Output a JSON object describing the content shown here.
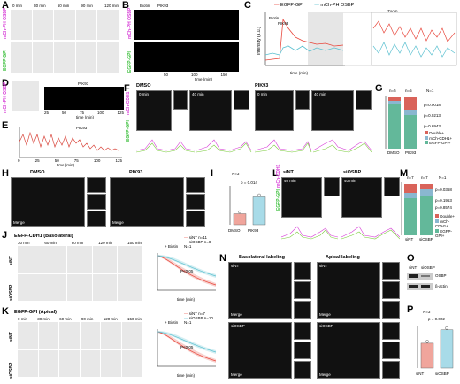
{
  "panels": {
    "A": {
      "label": "A",
      "times": [
        "0 min",
        "30 min",
        "60 min",
        "90 min",
        "120 min"
      ],
      "rows": [
        "mCh-PH OSBP",
        "EGFP-GPI"
      ]
    },
    "B": {
      "label": "B",
      "top": [
        "Biotin",
        "PIK93"
      ],
      "xlabel": "time (min)",
      "ticks": [
        "50",
        "100",
        "150"
      ],
      "rows": [
        "mCh-PH OSBP",
        "EGFP-GPI"
      ]
    },
    "C": {
      "label": "C",
      "legend": [
        "EGFP-GPI",
        "mCh-PH OSBP"
      ],
      "marks": [
        "Biotin",
        "PIK93"
      ],
      "ylabel": "Intensity (a.u.)",
      "xlabel": "time (min)",
      "zoom": "Zoom",
      "colors": {
        "gpi": "#e8473c",
        "ph": "#5bc0d0"
      }
    },
    "D": {
      "label": "D",
      "mark": "PIK93",
      "xlabel": "time (min)",
      "ticks": [
        "25",
        "50",
        "75",
        "100",
        "125"
      ],
      "row": "mCh-PH OSBP"
    },
    "E": {
      "label": "E",
      "mark": "PIK93",
      "ylabel": "Intensity (a.u.)",
      "xlabel": "time (min)",
      "ticks": [
        "0",
        "25",
        "50",
        "75",
        "100",
        "125"
      ]
    },
    "F": {
      "label": "F",
      "conds": [
        "DMSO",
        "PIK93"
      ],
      "times": [
        "0 min",
        "40 min"
      ],
      "zoom": "Zoom",
      "rows": [
        "EGFP-GPI",
        "mCh-CDH1"
      ]
    },
    "G": {
      "label": "G",
      "n": [
        "n=5",
        "n=5"
      ],
      "N": "N=1",
      "pvals": [
        "p=0.0018",
        "p=0.0213",
        "p=0.6943"
      ],
      "legend": [
        "Double+",
        "mCh-CDH1+",
        "EGFP-GPI+"
      ],
      "xcats": [
        "DMSO",
        "PIK93"
      ],
      "ylabel": "%",
      "yticks": [
        "0",
        "25",
        "50",
        "75",
        "100"
      ],
      "colors": {
        "double": "#d9635a",
        "cdh1": "#8ab7d0",
        "gpi": "#63b89a"
      }
    },
    "H": {
      "label": "H",
      "conds": [
        "DMSO",
        "PIK93"
      ],
      "merge": "Merge",
      "chans": [
        "Actin",
        "Sec16"
      ]
    },
    "I": {
      "label": "I",
      "N": "N=3",
      "p": "p = 0.014",
      "ylabel": "Cysts with luminal defect (%)",
      "xcats": [
        "DMSO",
        "PIK93"
      ],
      "yticks": [
        "0",
        "20",
        "40",
        "60"
      ],
      "chart_data": {
        "type": "bar",
        "categories": [
          "DMSO",
          "PIK93"
        ],
        "values": [
          17,
          43
        ],
        "ylim": [
          0,
          60
        ]
      }
    },
    "J": {
      "label": "J",
      "title": "EGFP-CDH1 (Basolateral)",
      "times": [
        "30 min",
        "60 min",
        "90 min",
        "120 min",
        "150 min"
      ],
      "rows": [
        "siNT",
        "siOSBP"
      ],
      "legend": [
        "siNT n=11",
        "siOSBP n=8"
      ],
      "N": "N=1",
      "treat": "+ Biotin",
      "p": "P<0.05",
      "ylabel": "Normalized intensity in Golgi",
      "xlabel": "time (min)"
    },
    "K": {
      "label": "K",
      "title": "EGFP-GPI (Apical)",
      "times": [
        "0 min",
        "30 min",
        "60 min",
        "90 min",
        "120 min",
        "150 min"
      ],
      "rows": [
        "siNT",
        "siOSBP"
      ],
      "legend": [
        "siNT n=7",
        "siOSBP n=10"
      ],
      "N": "N=1",
      "treat": "+ Biotin",
      "p": "P<0.05",
      "ylabel": "Normalized intensity in Golgi",
      "xlabel": "time (min)"
    },
    "L": {
      "label": "L",
      "conds": [
        "siNT",
        "siOSBP"
      ],
      "time": "40 min",
      "zoom": "Zoom",
      "rows": [
        "EGFP-GPI",
        "mCh-CDH1"
      ]
    },
    "M": {
      "label": "M",
      "n": [
        "n=7",
        "n=7"
      ],
      "N": "N=1",
      "pvals": [
        "p=0.0358",
        "p=0.1953",
        "p=0.8574"
      ],
      "legend": [
        "Double+",
        "mCh-CDH1+",
        "EGFP-GPI+"
      ],
      "xcats": [
        "siNT",
        "siOSBP"
      ],
      "ylabel": "%",
      "yticks": [
        "0",
        "25",
        "50",
        "75",
        "100"
      ]
    },
    "N": {
      "label": "N",
      "titles": [
        "Basolateral labeling",
        "Apical labeling"
      ],
      "rows": [
        "siNT",
        "siOSBP"
      ],
      "merge": "Merge"
    },
    "O": {
      "label": "O",
      "cols": [
        "siNT",
        "siOSBP"
      ],
      "bands": [
        "OSBP",
        "β-actin"
      ]
    },
    "P": {
      "label": "P",
      "N": "N=3",
      "p": "p = 0.022",
      "ylabel": "Cysts with luminal defect (%)",
      "xcats": [
        "siNT",
        "siOSBP"
      ],
      "yticks": [
        "0",
        "20",
        "40",
        "60"
      ],
      "chart_data": {
        "type": "bar",
        "categories": [
          "siNT",
          "siOSBP"
        ],
        "values": [
          41,
          63
        ],
        "ylim": [
          0,
          70
        ]
      }
    }
  }
}
